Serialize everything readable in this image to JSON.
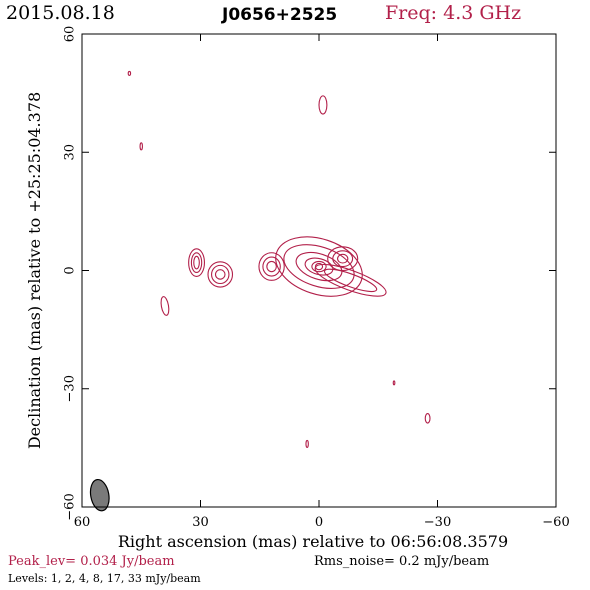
{
  "header": {
    "date": "2015.08.18",
    "source": "J0656+2525",
    "freq": "Freq: 4.3 GHz"
  },
  "colors": {
    "contour": "#b2204a",
    "axes": "#000000",
    "beam_fill": "#7a7a7a"
  },
  "footer": {
    "peak": "Peak_lev=  0.034 Jy/beam",
    "noise": "Rms_noise=   0.2 mJy/beam",
    "levels": "Levels:   1,    2,    4,    8,   17,   33 mJy/beam"
  },
  "chart_data": {
    "type": "contour",
    "xlabel": "Right ascension (mas) relative to 06:56:08.3579",
    "ylabel": "Declination (mas) relative to +25:25:04.378",
    "xlim": [
      60,
      -60
    ],
    "ylim": [
      -60,
      60
    ],
    "xticks": [
      60,
      30,
      0,
      -30,
      -60
    ],
    "yticks": [
      60,
      30,
      0,
      -30,
      -60
    ],
    "xtick_labels": [
      "60",
      "30",
      "0",
      "−30",
      "−60"
    ],
    "ytick_labels": [
      "60",
      "30",
      "0",
      "−30",
      "−60"
    ],
    "contour_levels_mJy": [
      1,
      2,
      4,
      8,
      17,
      33
    ],
    "peak_Jy_per_beam": 0.034,
    "rms_noise_mJy_per_beam": 0.2,
    "beam": {
      "x": 55.5,
      "y": -57,
      "major_mas": 4.2,
      "minor_mas": 2.4,
      "pa_deg": -10
    },
    "components": [
      {
        "name": "core",
        "x": 0,
        "y": 1,
        "contours": [
          {
            "dx": 11.3,
            "dy": 7.0,
            "pa": -18
          },
          {
            "dx": 9.2,
            "dy": 5.0,
            "pa": -18
          },
          {
            "dx": 6.0,
            "dy": 3.2,
            "pa": -18
          },
          {
            "dx": 3.6,
            "dy": 2.0,
            "pa": -15
          },
          {
            "dx": 1.8,
            "dy": 1.3,
            "pa": 0
          },
          {
            "dx": 0.9,
            "dy": 0.8,
            "pa": 0
          }
        ]
      },
      {
        "name": "jet-east-1",
        "x": -6,
        "y": 3,
        "contours": [
          {
            "dx": 3.8,
            "dy": 3.0,
            "pa": 0
          },
          {
            "dx": 2.5,
            "dy": 2.0,
            "pa": 0
          },
          {
            "dx": 1.3,
            "dy": 1.1,
            "pa": 0
          }
        ]
      },
      {
        "name": "jet-tail",
        "x": -8,
        "y": -2.5,
        "contours": [
          {
            "dx": 9.5,
            "dy": 2.5,
            "pa": -20
          },
          {
            "dx": 7.0,
            "dy": 1.6,
            "pa": -20
          }
        ]
      },
      {
        "name": "knot-west",
        "x": 12,
        "y": 1,
        "contours": [
          {
            "dx": 3.2,
            "dy": 3.5,
            "pa": 0
          },
          {
            "dx": 2.2,
            "dy": 2.4,
            "pa": 0
          },
          {
            "dx": 1.2,
            "dy": 1.3,
            "pa": 0
          }
        ]
      },
      {
        "name": "blob-30",
        "x": 31,
        "y": 2,
        "contours": [
          {
            "dx": 2.0,
            "dy": 3.5,
            "pa": 0
          },
          {
            "dx": 1.3,
            "dy": 2.5,
            "pa": 0
          },
          {
            "dx": 0.7,
            "dy": 1.6,
            "pa": 0
          }
        ]
      },
      {
        "name": "blob-24",
        "x": 25,
        "y": -1,
        "contours": [
          {
            "dx": 3.1,
            "dy": 3.2,
            "pa": 0
          },
          {
            "dx": 2.2,
            "dy": 2.3,
            "pa": 0
          },
          {
            "dx": 1.2,
            "dy": 1.2,
            "pa": 0
          }
        ]
      },
      {
        "name": "blob-39",
        "x": 39,
        "y": -9,
        "contours": [
          {
            "dx": 0.9,
            "dy": 2.4,
            "pa": 10
          }
        ]
      },
      {
        "name": "blob-north",
        "x": -1,
        "y": 42,
        "contours": [
          {
            "dx": 1.0,
            "dy": 2.3,
            "pa": 0
          }
        ]
      },
      {
        "name": "dot-48-50",
        "x": 48,
        "y": 50,
        "contours": [
          {
            "dx": 0.3,
            "dy": 0.5,
            "pa": 0
          }
        ]
      },
      {
        "name": "dot-45-32",
        "x": 45,
        "y": 31.5,
        "contours": [
          {
            "dx": 0.3,
            "dy": 0.9,
            "pa": 0
          }
        ]
      },
      {
        "name": "dot-m19-m28",
        "x": -19,
        "y": -28.5,
        "contours": [
          {
            "dx": 0.2,
            "dy": 0.5,
            "pa": 0
          }
        ]
      },
      {
        "name": "dot-m27-m38",
        "x": -27.5,
        "y": -37.5,
        "contours": [
          {
            "dx": 0.6,
            "dy": 1.2,
            "pa": 0
          }
        ]
      },
      {
        "name": "dot-3-m44",
        "x": 3,
        "y": -44,
        "contours": [
          {
            "dx": 0.3,
            "dy": 0.9,
            "pa": 0
          }
        ]
      }
    ]
  }
}
